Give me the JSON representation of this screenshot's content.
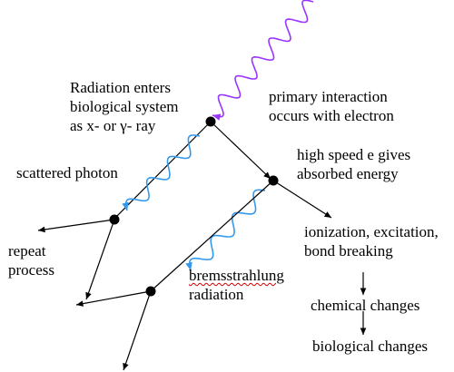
{
  "labels": {
    "radiation_enters_1": "Radiation enters",
    "radiation_enters_2": "biological system",
    "radiation_enters_3": "as x- or γ- ray",
    "primary_1": "primary interaction",
    "primary_2": "occurs with electron",
    "high_speed_1": "high speed e gives",
    "high_speed_2": "absorbed energy",
    "scattered_photon": "scattered photon",
    "repeat_1": "repeat",
    "repeat_2": "process",
    "ionization_1": "ionization, excitation,",
    "ionization_2": "bond breaking",
    "brems_1": "bremsstrahlung",
    "brems_2": "radiation",
    "chemical": "chemical changes",
    "biological": "biological changes"
  },
  "colors": {
    "incoming_wave": "#9933ff",
    "scattered_wave": "#3399ee",
    "lines": "#000000",
    "spellcheck": "#cc0000"
  }
}
